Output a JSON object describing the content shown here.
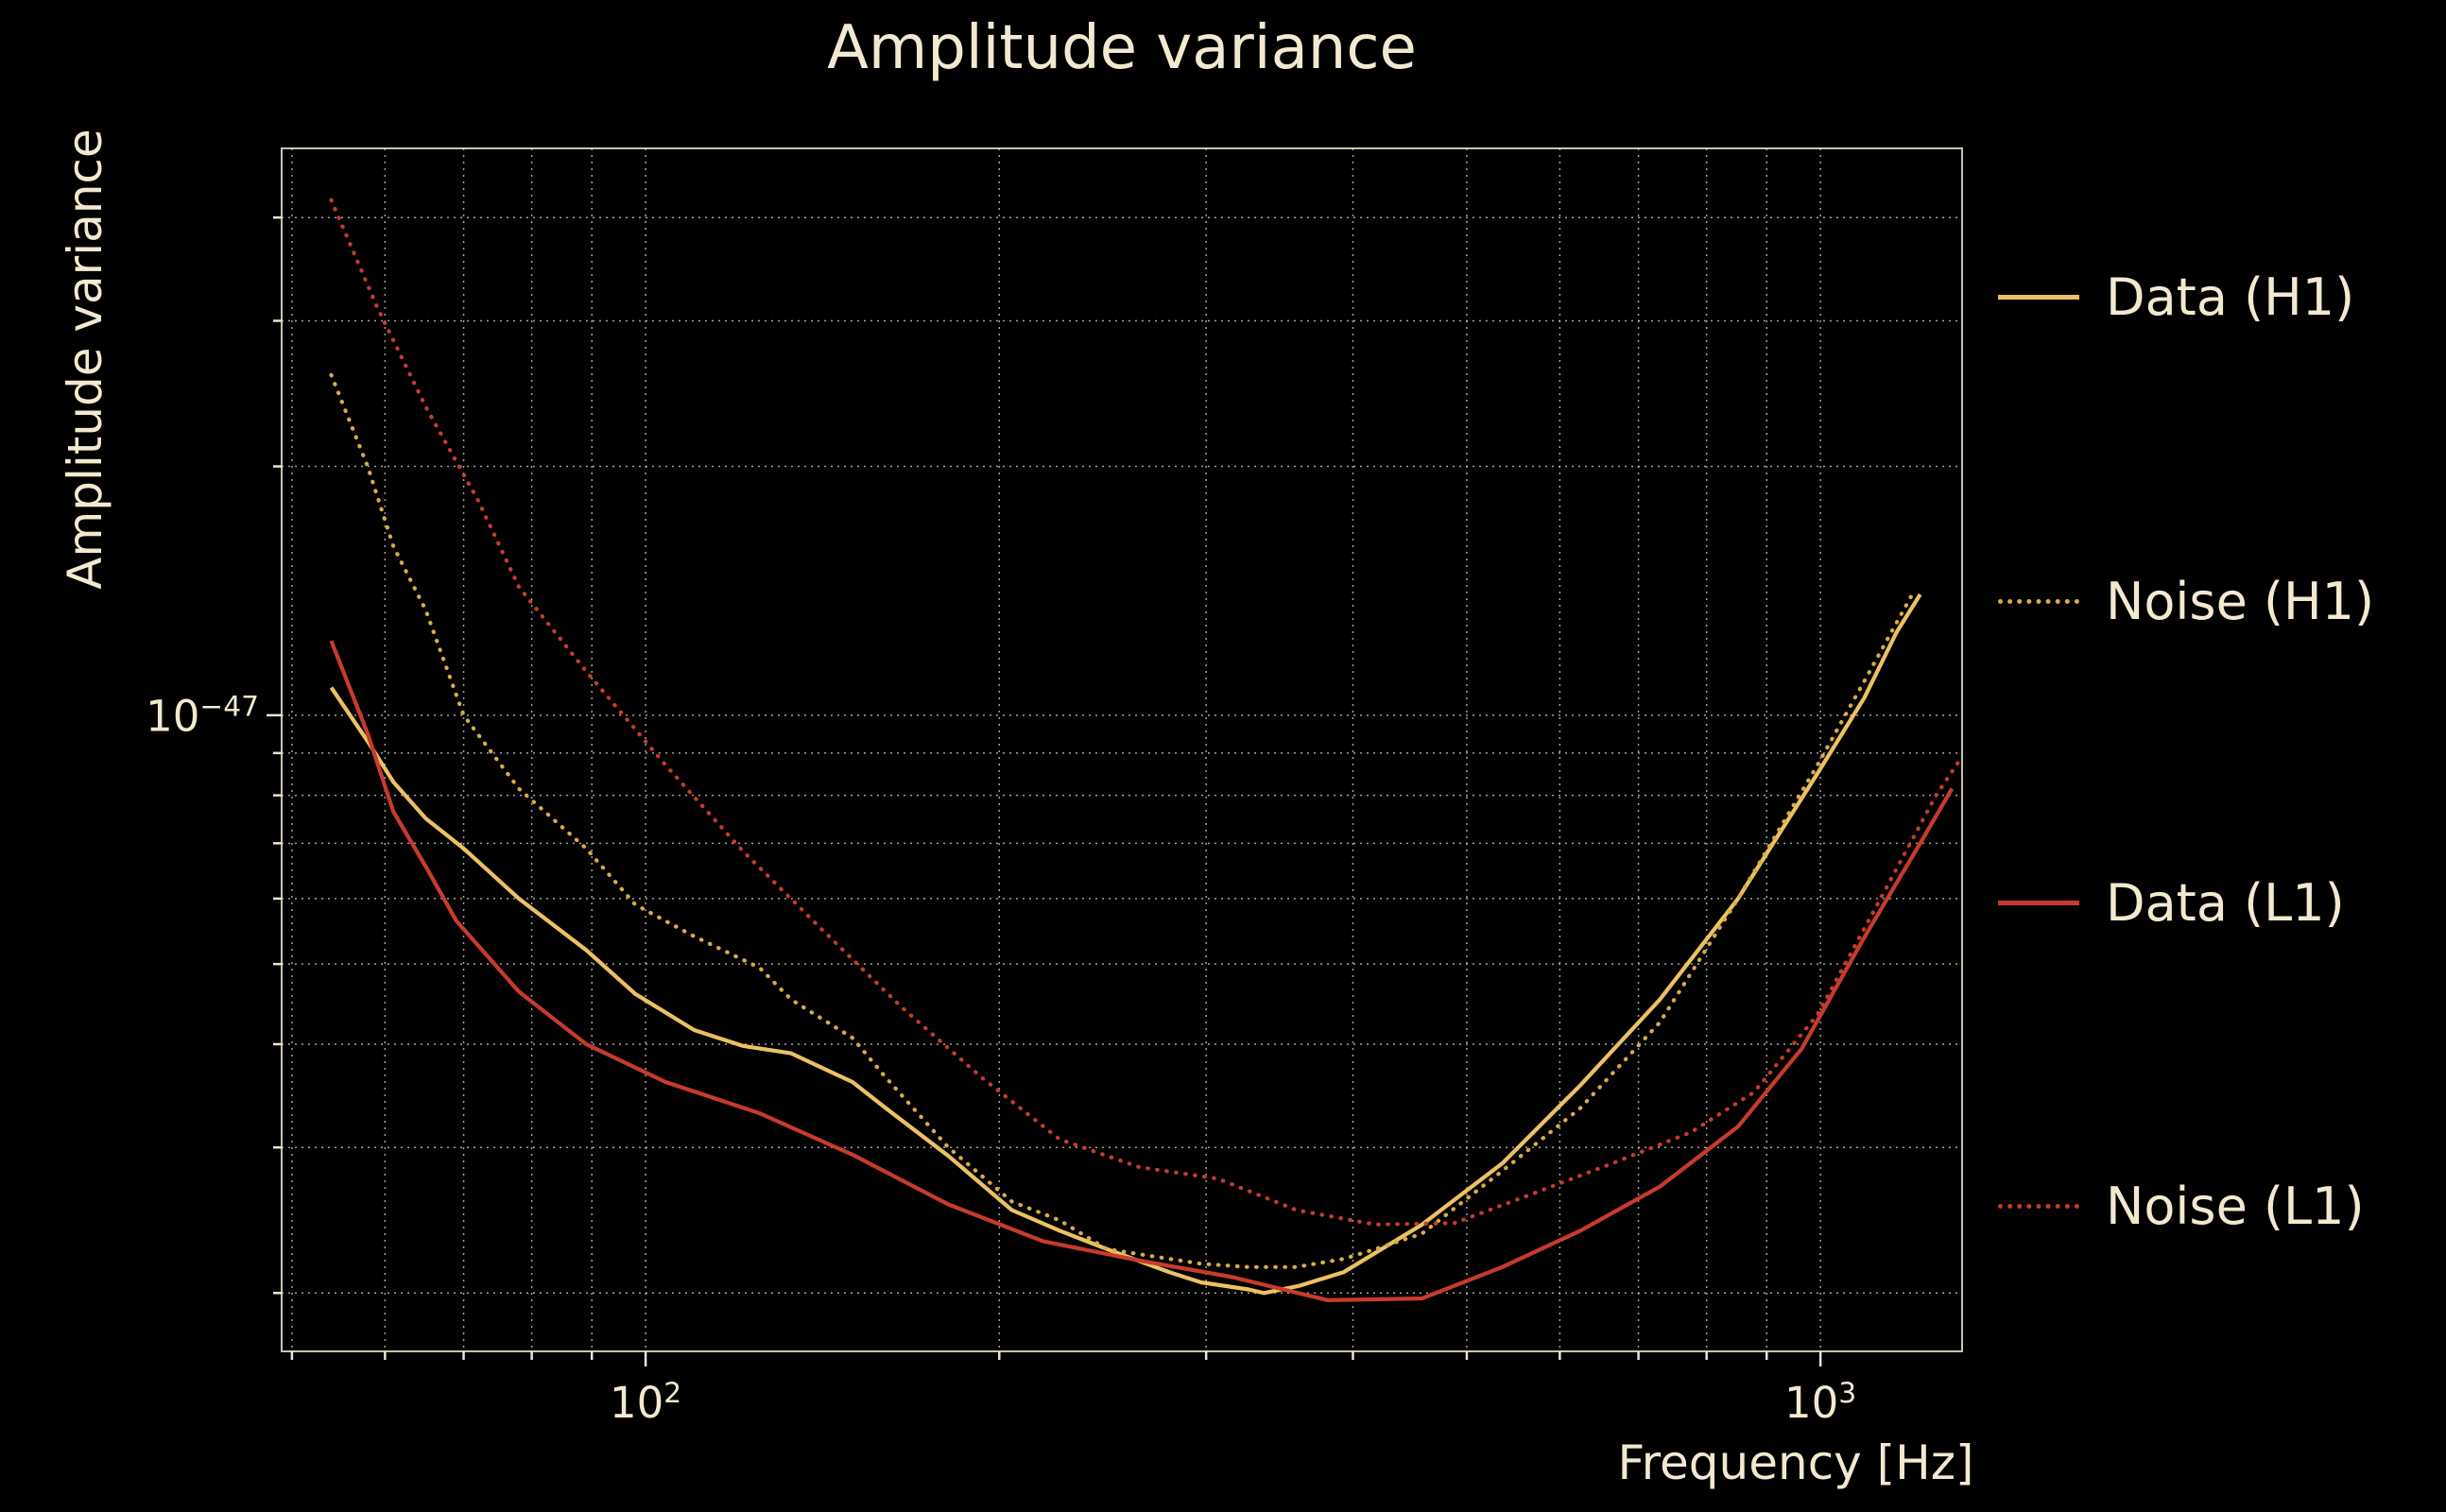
{
  "colors": {
    "background": "#000000",
    "text": "#f3e9d0",
    "grid": "#c9c9c9",
    "gold": "#ecc163",
    "gold_dotted": "#d9ac44",
    "red": "#c73b2c"
  },
  "legend": [
    {
      "label": "Data (H1)",
      "color": "#ecc163",
      "style": "solid"
    },
    {
      "label": "Noise (H1)",
      "color": "#d9ac44",
      "style": "dotted"
    },
    {
      "label": "Data (L1)",
      "color": "#c73b2c",
      "style": "solid"
    },
    {
      "label": "Noise (L1)",
      "color": "#c73b2c",
      "style": "dotted"
    }
  ],
  "chart_data": {
    "type": "line",
    "title": "Amplitude variance",
    "xlabel": "Frequency [Hz]",
    "ylabel": "Amplitude variance",
    "xscale": "log",
    "yscale": "log",
    "grid": true,
    "legend_position": "right-outside",
    "xlim": [
      49,
      1320
    ],
    "ylim": [
      1.7e-48,
      4.85e-47
    ],
    "xticks": [
      {
        "value": 100,
        "base": "10",
        "exp": "2"
      },
      {
        "value": 1000,
        "base": "10",
        "exp": "3"
      }
    ],
    "yticks": [
      {
        "value": 1e-47,
        "base": "10",
        "exp": "−47"
      }
    ],
    "x_gridlines": [
      50,
      60,
      70,
      80,
      90,
      100,
      200,
      300,
      400,
      500,
      600,
      700,
      800,
      900,
      1000
    ],
    "y_gridlines": [
      2e-48,
      3e-48,
      4e-48,
      5e-48,
      6e-48,
      7e-48,
      8e-48,
      9e-48,
      1e-47,
      2e-47,
      3e-47,
      4e-47
    ],
    "series": [
      {
        "name": "Data (H1)",
        "color": "#ecc163",
        "style": "solid",
        "points": [
          [
            54,
            1.08e-47
          ],
          [
            58,
            9.3e-48
          ],
          [
            61,
            8.3e-48
          ],
          [
            65,
            7.5e-48
          ],
          [
            70,
            6.9e-48
          ],
          [
            78,
            6e-48
          ],
          [
            89,
            5.2e-48
          ],
          [
            98,
            4.6e-48
          ],
          [
            110,
            4.16e-48
          ],
          [
            121,
            3.98e-48
          ],
          [
            133,
            3.9e-48
          ],
          [
            150,
            3.6e-48
          ],
          [
            160,
            3.35e-48
          ],
          [
            181,
            2.93e-48
          ],
          [
            205,
            2.52e-48
          ],
          [
            225,
            2.38e-48
          ],
          [
            247,
            2.26e-48
          ],
          [
            279,
            2.12e-48
          ],
          [
            297,
            2.06e-48
          ],
          [
            326,
            2.02e-48
          ],
          [
            336,
            2e-48
          ],
          [
            360,
            2.04e-48
          ],
          [
            393,
            2.12e-48
          ],
          [
            458,
            2.42e-48
          ],
          [
            536,
            2.87e-48
          ],
          [
            625,
            3.57e-48
          ],
          [
            730,
            4.53e-48
          ],
          [
            851,
            6e-48
          ],
          [
            994,
            8.5e-48
          ],
          [
            1090,
            1.05e-47
          ],
          [
            1161,
            1.26e-47
          ],
          [
            1216,
            1.4e-47
          ]
        ]
      },
      {
        "name": "Noise (H1)",
        "color": "#d9ac44",
        "style": "dotted",
        "points": [
          [
            54,
            2.58e-47
          ],
          [
            58,
            2e-47
          ],
          [
            61,
            1.6e-47
          ],
          [
            65,
            1.34e-47
          ],
          [
            70,
            1e-47
          ],
          [
            78,
            8.15e-48
          ],
          [
            89,
            6.9e-48
          ],
          [
            98,
            5.9e-48
          ],
          [
            110,
            5.4e-48
          ],
          [
            125,
            4.95e-48
          ],
          [
            133,
            4.53e-48
          ],
          [
            150,
            4.07e-48
          ],
          [
            160,
            3.65e-48
          ],
          [
            181,
            3e-48
          ],
          [
            205,
            2.58e-48
          ],
          [
            225,
            2.45e-48
          ],
          [
            247,
            2.26e-48
          ],
          [
            279,
            2.2e-48
          ],
          [
            297,
            2.17e-48
          ],
          [
            326,
            2.15e-48
          ],
          [
            358,
            2.15e-48
          ],
          [
            393,
            2.2e-48
          ],
          [
            418,
            2.26e-48
          ],
          [
            458,
            2.36e-48
          ],
          [
            536,
            2.81e-48
          ],
          [
            625,
            3.35e-48
          ],
          [
            730,
            4.25e-48
          ],
          [
            851,
            6e-48
          ],
          [
            994,
            8.7e-48
          ],
          [
            1090,
            1.1e-47
          ],
          [
            1197,
            1.4e-47
          ]
        ]
      },
      {
        "name": "Data (L1)",
        "color": "#c73b2c",
        "style": "solid",
        "points": [
          [
            54,
            1.23e-47
          ],
          [
            58,
            9.5e-48
          ],
          [
            61,
            7.64e-48
          ],
          [
            65,
            6.56e-48
          ],
          [
            69,
            5.64e-48
          ],
          [
            78,
            4.63e-48
          ],
          [
            89,
            4e-48
          ],
          [
            104,
            3.6e-48
          ],
          [
            125,
            3.3e-48
          ],
          [
            150,
            2.94e-48
          ],
          [
            181,
            2.56e-48
          ],
          [
            218,
            2.31e-48
          ],
          [
            263,
            2.19e-48
          ],
          [
            316,
            2.09e-48
          ],
          [
            381,
            1.96e-48
          ],
          [
            458,
            1.97e-48
          ],
          [
            536,
            2.15e-48
          ],
          [
            625,
            2.38e-48
          ],
          [
            730,
            2.69e-48
          ],
          [
            851,
            3.18e-48
          ],
          [
            964,
            3.95e-48
          ],
          [
            1091,
            5.4e-48
          ],
          [
            1216,
            7e-48
          ],
          [
            1294,
            8.15e-48
          ]
        ]
      },
      {
        "name": "Noise (L1)",
        "color": "#c73b2c",
        "style": "dotted",
        "points": [
          [
            54,
            4.2e-47
          ],
          [
            59,
            3.13e-47
          ],
          [
            65,
            2.36e-47
          ],
          [
            72,
            1.82e-47
          ],
          [
            78,
            1.43e-47
          ],
          [
            89,
            1.13e-47
          ],
          [
            104,
            8.7e-48
          ],
          [
            121,
            6.85e-48
          ],
          [
            141,
            5.52e-48
          ],
          [
            165,
            4.44e-48
          ],
          [
            193,
            3.65e-48
          ],
          [
            225,
            3.07e-48
          ],
          [
            263,
            2.84e-48
          ],
          [
            307,
            2.75e-48
          ],
          [
            358,
            2.52e-48
          ],
          [
            418,
            2.42e-48
          ],
          [
            488,
            2.43e-48
          ],
          [
            570,
            2.64e-48
          ],
          [
            665,
            2.87e-48
          ],
          [
            776,
            3.13e-48
          ],
          [
            878,
            3.5e-48
          ],
          [
            994,
            4.34e-48
          ],
          [
            1125,
            6e-48
          ],
          [
            1253,
            7.98e-48
          ],
          [
            1312,
            8.8e-48
          ]
        ]
      }
    ]
  }
}
